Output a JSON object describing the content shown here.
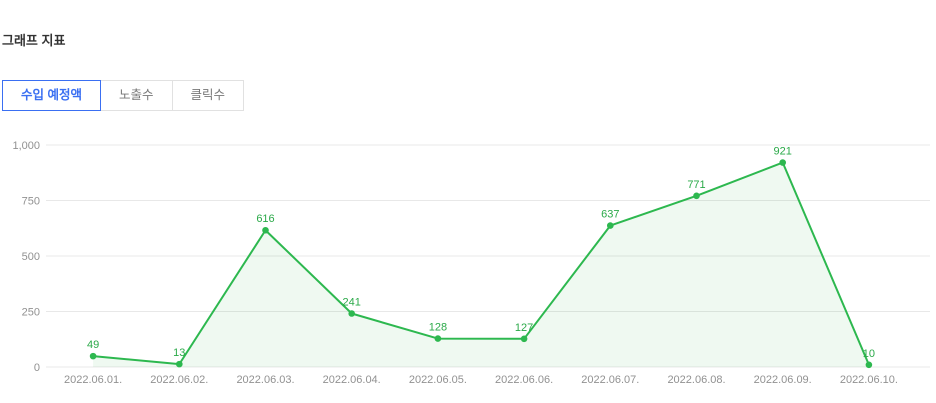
{
  "header": {
    "title": "그래프 지표"
  },
  "tabs": [
    {
      "id": "expected-revenue",
      "label": "수입 예정액",
      "active": true
    },
    {
      "id": "impressions",
      "label": "노출수",
      "active": false
    },
    {
      "id": "clicks",
      "label": "클릭수",
      "active": false
    }
  ],
  "colors": {
    "active_tab": "#3a6ff2",
    "inactive_tab_text": "#777777",
    "grid": "#e8e8e8"
  },
  "chart_data": {
    "type": "line",
    "title": "수입 예정액",
    "categories": [
      "2022.06.01.",
      "2022.06.02.",
      "2022.06.03.",
      "2022.06.04.",
      "2022.06.05.",
      "2022.06.06.",
      "2022.06.07.",
      "2022.06.08.",
      "2022.06.09.",
      "2022.06.10."
    ],
    "values": [
      49,
      13,
      616,
      241,
      128,
      127,
      637,
      771,
      921,
      10
    ],
    "xlabel": "",
    "ylabel": "",
    "ylim": [
      0,
      1000
    ],
    "yticks": [
      0,
      250,
      500,
      750,
      1000
    ],
    "ytick_labels": [
      "0",
      "250",
      "500",
      "750",
      "1,000"
    ],
    "grid": true,
    "legend_position": "none",
    "line_color": "#2db84f",
    "fill_color": "rgba(46,184,79,0.08)",
    "label_color": "#2aa948",
    "axis_text_color": "#919191"
  }
}
